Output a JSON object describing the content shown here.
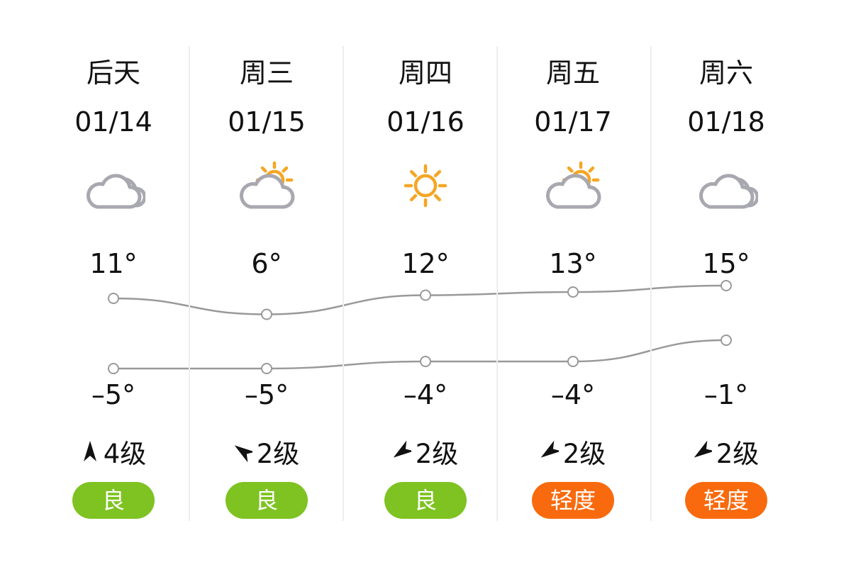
{
  "days": [
    {
      "day": "后天",
      "date": "01/14",
      "weather_icon": "cloudy-icon",
      "high": "11°",
      "low": "–5°",
      "wind_dir_icon": "wind-arrow-north-icon",
      "wind": "4级",
      "aqi": "良",
      "aqi_color": "#7ec322"
    },
    {
      "day": "周三",
      "date": "01/15",
      "weather_icon": "partly-cloudy-icon",
      "high": "6°",
      "low": "–5°",
      "wind_dir_icon": "wind-arrow-northwest-icon",
      "wind": "2级",
      "aqi": "良",
      "aqi_color": "#7ec322"
    },
    {
      "day": "周四",
      "date": "01/16",
      "weather_icon": "sunny-icon",
      "high": "12°",
      "low": "–4°",
      "wind_dir_icon": "wind-arrow-southwest-icon",
      "wind": "2级",
      "aqi": "良",
      "aqi_color": "#7ec322"
    },
    {
      "day": "周五",
      "date": "01/17",
      "weather_icon": "partly-cloudy-icon",
      "high": "13°",
      "low": "–4°",
      "wind_dir_icon": "wind-arrow-southwest-icon",
      "wind": "2级",
      "aqi": "轻度",
      "aqi_color": "#f86a0d"
    },
    {
      "day": "周六",
      "date": "01/18",
      "weather_icon": "cloudy-icon",
      "high": "15°",
      "low": "–1°",
      "wind_dir_icon": "wind-arrow-southwest-icon",
      "wind": "2级",
      "aqi": "轻度",
      "aqi_color": "#f86a0d"
    }
  ],
  "chart_data": {
    "type": "line",
    "categories": [
      "01/14",
      "01/15",
      "01/16",
      "01/17",
      "01/18"
    ],
    "series": [
      {
        "values": [
          11,
          6,
          12,
          13,
          15
        ]
      },
      {
        "values": [
          -5,
          -5,
          -4,
          -4,
          -1
        ]
      }
    ]
  },
  "colors": {
    "line": "#999999",
    "sun": "#f5a623",
    "cloud": "#a8a8b0"
  }
}
